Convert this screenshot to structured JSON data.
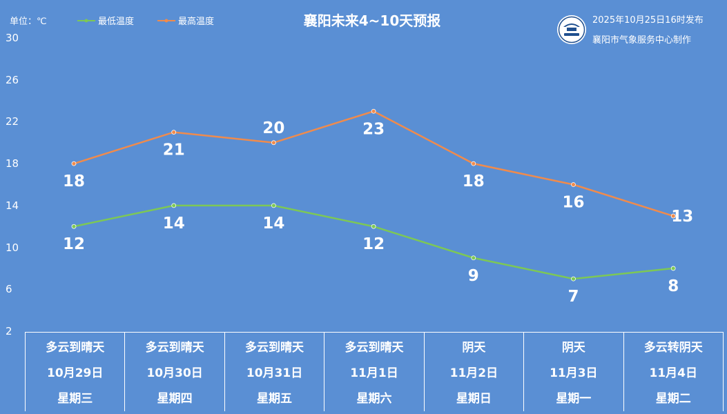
{
  "unit_label": "单位：℃",
  "title": "襄阳未来4~10天预报",
  "published": "2025年10月25日16时发布",
  "maker": "襄阳市气象服务中心制作",
  "colors": {
    "low": "#7dc855",
    "high": "#f08b4c",
    "background": "#5a8fd4"
  },
  "chart_data": {
    "type": "line",
    "title": "襄阳未来4~10天预报",
    "ylabel": "单位：℃",
    "ylim": [
      2,
      30
    ],
    "yticks": [
      2,
      6,
      10,
      14,
      18,
      22,
      26,
      30
    ],
    "grid": false,
    "legend": "top-left",
    "categories": [
      "10月29日",
      "10月30日",
      "10月31日",
      "11月1日",
      "11月2日",
      "11月3日",
      "11月4日"
    ],
    "series": [
      {
        "name": "最低温度",
        "values": [
          12,
          14,
          14,
          12,
          9,
          7,
          8
        ]
      },
      {
        "name": "最高温度",
        "values": [
          18,
          21,
          20,
          23,
          18,
          16,
          13
        ]
      }
    ]
  },
  "days": [
    {
      "weather": "多云到晴天",
      "date": "10月29日",
      "weekday": "星期三"
    },
    {
      "weather": "多云到晴天",
      "date": "10月30日",
      "weekday": "星期四"
    },
    {
      "weather": "多云到晴天",
      "date": "10月31日",
      "weekday": "星期五"
    },
    {
      "weather": "多云到晴天",
      "date": "11月1日",
      "weekday": "星期六"
    },
    {
      "weather": "阴天",
      "date": "11月2日",
      "weekday": "星期日"
    },
    {
      "weather": "阴天",
      "date": "11月3日",
      "weekday": "星期一"
    },
    {
      "weather": "多云转阴天",
      "date": "11月4日",
      "weekday": "星期二"
    }
  ]
}
